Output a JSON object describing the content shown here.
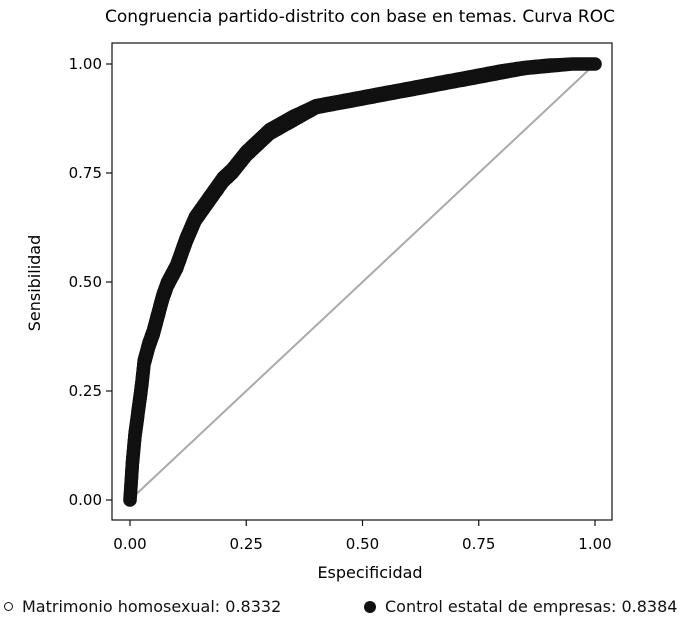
{
  "chart_data": {
    "type": "line",
    "title": "Congruencia partido-distrito con base en temas. Curva ROC",
    "xlabel": "Especificidad",
    "ylabel": "Sensibilidad",
    "xlim": [
      0,
      1
    ],
    "ylim": [
      0,
      1
    ],
    "xticks": [
      "0.00",
      "0.25",
      "0.50",
      "0.75",
      "1.00"
    ],
    "yticks": [
      "0.00",
      "0.25",
      "0.50",
      "0.75",
      "1.00"
    ],
    "grid": false,
    "legend_position": "bottom",
    "series": [
      {
        "name": "Matrimonio homosexual: 0.8332",
        "marker": "open-circle",
        "color": "#111111",
        "x": [
          0,
          0.005,
          0.01,
          0.015,
          0.02,
          0.025,
          0.03,
          0.04,
          0.05,
          0.06,
          0.07,
          0.08,
          0.09,
          0.1,
          0.12,
          0.14,
          0.16,
          0.18,
          0.2,
          0.22,
          0.25,
          0.28,
          0.3,
          0.35,
          0.4,
          0.45,
          0.5,
          0.55,
          0.6,
          0.65,
          0.7,
          0.75,
          0.8,
          0.85,
          0.9,
          0.95,
          1.0
        ],
        "y": [
          0,
          0.08,
          0.14,
          0.18,
          0.22,
          0.26,
          0.31,
          0.35,
          0.38,
          0.42,
          0.46,
          0.49,
          0.51,
          0.53,
          0.59,
          0.64,
          0.67,
          0.7,
          0.73,
          0.75,
          0.79,
          0.82,
          0.84,
          0.87,
          0.9,
          0.91,
          0.92,
          0.93,
          0.94,
          0.95,
          0.96,
          0.97,
          0.98,
          0.99,
          0.995,
          1.0,
          1.0
        ]
      },
      {
        "name": "Control estatal de empresas: 0.8384",
        "marker": "filled-circle",
        "color": "#111111",
        "x": [
          0,
          0.005,
          0.01,
          0.015,
          0.02,
          0.025,
          0.03,
          0.04,
          0.05,
          0.06,
          0.07,
          0.08,
          0.09,
          0.1,
          0.12,
          0.14,
          0.16,
          0.18,
          0.2,
          0.22,
          0.25,
          0.28,
          0.3,
          0.35,
          0.4,
          0.45,
          0.5,
          0.55,
          0.6,
          0.65,
          0.7,
          0.75,
          0.8,
          0.85,
          0.9,
          0.95,
          1.0
        ],
        "y": [
          0,
          0.09,
          0.15,
          0.19,
          0.23,
          0.27,
          0.32,
          0.36,
          0.39,
          0.43,
          0.47,
          0.5,
          0.52,
          0.54,
          0.6,
          0.65,
          0.68,
          0.71,
          0.74,
          0.76,
          0.8,
          0.83,
          0.85,
          0.88,
          0.905,
          0.915,
          0.925,
          0.935,
          0.945,
          0.955,
          0.965,
          0.975,
          0.985,
          0.993,
          0.998,
          1.0,
          1.0
        ]
      },
      {
        "name": "",
        "style": "reference-line",
        "color": "#aaaaaa",
        "x": [
          0,
          1
        ],
        "y": [
          0,
          1
        ]
      }
    ],
    "legend": [
      {
        "marker": "open-circle",
        "label": "Matrimonio homosexual: 0.8332"
      },
      {
        "marker": "filled-circle",
        "label": "Control estatal de empresas: 0.8384"
      }
    ]
  }
}
